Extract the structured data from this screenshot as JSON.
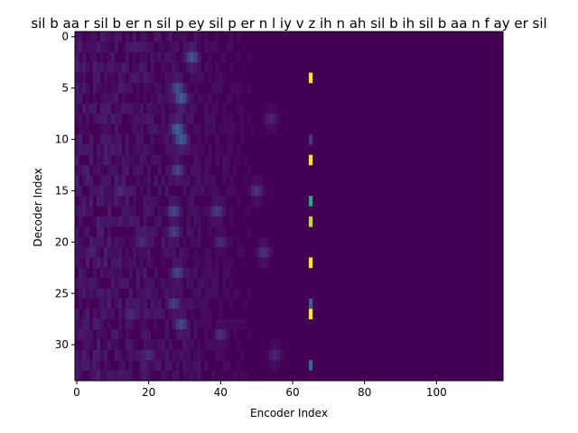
{
  "chart_data": {
    "type": "heatmap",
    "title": "sil b aa r sil b er n sil p ey sil p er n l iy v z ih n ah sil b ih sil b aa n f ay er sil",
    "xlabel": "Encoder Index",
    "ylabel": "Decoder Index",
    "xlim": [
      -0.5,
      118.5
    ],
    "ylim": [
      33.5,
      -0.5
    ],
    "n_cols": 119,
    "n_rows": 34,
    "x_ticks": [
      0,
      20,
      40,
      60,
      80,
      100
    ],
    "y_ticks": [
      0,
      5,
      10,
      15,
      20,
      25,
      30
    ],
    "colormap": "viridis",
    "background_value": 0,
    "value_range": [
      0,
      1
    ],
    "grid": false,
    "peak_column": 65,
    "peak_cells": [
      {
        "row": 4,
        "value": 1.0
      },
      {
        "row": 10,
        "value": 0.15
      },
      {
        "row": 12,
        "value": 1.0
      },
      {
        "row": 16,
        "value": 0.6
      },
      {
        "row": 18,
        "value": 0.9
      },
      {
        "row": 22,
        "value": 1.0
      },
      {
        "row": 26,
        "value": 0.3
      },
      {
        "row": 27,
        "value": 1.0
      },
      {
        "row": 32,
        "value": 0.35
      }
    ],
    "diffuse_region": {
      "col_range": [
        0,
        58
      ],
      "hotspots": [
        {
          "col": 28,
          "row": 5,
          "value": 0.25
        },
        {
          "col": 29,
          "row": 6,
          "value": 0.3
        },
        {
          "col": 28,
          "row": 9,
          "value": 0.32
        },
        {
          "col": 29,
          "row": 10,
          "value": 0.3
        },
        {
          "col": 32,
          "row": 2,
          "value": 0.28
        },
        {
          "col": 28,
          "row": 13,
          "value": 0.2
        },
        {
          "col": 27,
          "row": 17,
          "value": 0.22
        },
        {
          "col": 39,
          "row": 17,
          "value": 0.18
        },
        {
          "col": 27,
          "row": 19,
          "value": 0.18
        },
        {
          "col": 28,
          "row": 23,
          "value": 0.2
        },
        {
          "col": 27,
          "row": 26,
          "value": 0.18
        },
        {
          "col": 29,
          "row": 28,
          "value": 0.22
        },
        {
          "col": 50,
          "row": 15,
          "value": 0.14
        },
        {
          "col": 52,
          "row": 21,
          "value": 0.14
        },
        {
          "col": 12,
          "row": 15,
          "value": 0.12
        },
        {
          "col": 40,
          "row": 20,
          "value": 0.12
        },
        {
          "col": 18,
          "row": 20,
          "value": 0.12
        },
        {
          "col": 20,
          "row": 31,
          "value": 0.13
        },
        {
          "col": 40,
          "row": 29,
          "value": 0.13
        },
        {
          "col": 15,
          "row": 27,
          "value": 0.12
        },
        {
          "col": 55,
          "row": 31,
          "value": 0.1
        },
        {
          "col": 54,
          "row": 8,
          "value": 0.1
        }
      ]
    }
  }
}
